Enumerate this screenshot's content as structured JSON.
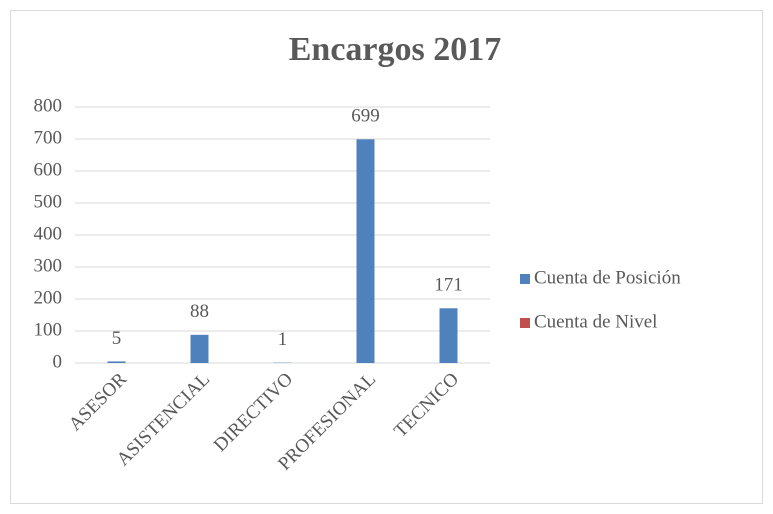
{
  "chart_data": {
    "type": "bar",
    "title": "Encargos 2017",
    "categories": [
      "ASESOR",
      "ASISTENCIAL",
      "DIRECTIVO",
      "PROFESIONAL",
      "TECNICO"
    ],
    "series": [
      {
        "name": "Cuenta de Posición",
        "color": "#4f81bd",
        "values": [
          5,
          88,
          1,
          699,
          171
        ]
      },
      {
        "name": "Cuenta de Nivel",
        "color": "#c0504d",
        "values": [
          null,
          null,
          null,
          null,
          null
        ]
      }
    ],
    "ylim": [
      0,
      800
    ],
    "yticks": [
      0,
      100,
      200,
      300,
      400,
      500,
      600,
      700,
      800
    ],
    "grid": true,
    "legend": "right"
  }
}
